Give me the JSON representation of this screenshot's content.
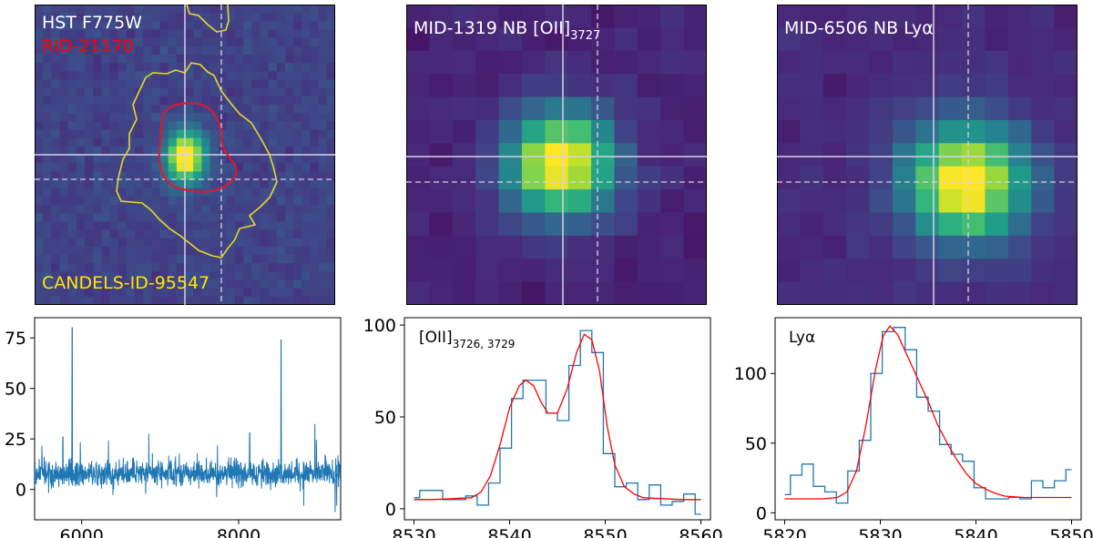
{
  "images": [
    {
      "id": "img1",
      "labels": [
        {
          "text": "HST F775W",
          "color": "#ffffff"
        },
        {
          "text": "RID-21170",
          "color": "#ff0000"
        },
        {
          "text": "CANDELS-ID-95547",
          "color": "#ffe600"
        }
      ]
    },
    {
      "id": "img2",
      "title_main": "MID-1319 NB [OII]",
      "title_sub": "3727"
    },
    {
      "id": "img3",
      "title_main": "MID-6506 NB Lyα"
    }
  ],
  "chart_data": [
    {
      "type": "line",
      "title": "",
      "xlabel": "",
      "ylabel": "",
      "xlim": [
        5400,
        9300
      ],
      "ylim": [
        -15,
        85
      ],
      "xticks": [
        6000,
        8000
      ],
      "yticks": [
        0,
        25,
        50,
        75
      ],
      "xticklabels": [
        "6000",
        "8000"
      ],
      "yticklabels": [
        "0",
        "25",
        "50",
        "75"
      ],
      "series": [
        {
          "name": "spectrum",
          "color": "#1f77b4",
          "baseline": 8,
          "noise": 7,
          "peaks": [
            {
              "x": 5877,
              "y": 80
            },
            {
              "x": 8540,
              "y": 74
            },
            {
              "x": 8140,
              "y": 28
            },
            {
              "x": 5760,
              "y": 26
            }
          ]
        }
      ]
    },
    {
      "type": "line",
      "annotation_main": "[OII]",
      "annotation_sub": "3726, 3729",
      "xlim": [
        8529,
        8561
      ],
      "ylim": [
        -6,
        104
      ],
      "xticks": [
        8530,
        8540,
        8550,
        8560
      ],
      "yticks": [
        0,
        50,
        100
      ],
      "xticklabels": [
        "8530",
        "8540",
        "8550",
        "8560"
      ],
      "yticklabels": [
        "0",
        "50",
        "100"
      ],
      "series": [
        {
          "name": "data",
          "color": "#1f77b4",
          "step": true,
          "x": [
            8530,
            8531.2,
            8532.4,
            8533.6,
            8534.8,
            8536,
            8537.2,
            8538.4,
            8539.6,
            8540.8,
            8542,
            8543.2,
            8544.4,
            8545.6,
            8546.8,
            8548,
            8549.2,
            8550.4,
            8551.6,
            8552.8,
            8554,
            8555.2,
            8556.4,
            8557.6,
            8558.8,
            8560
          ],
          "y": [
            6,
            10,
            10,
            5,
            5,
            7,
            2,
            14,
            33,
            60,
            70,
            70,
            52,
            48,
            78,
            97,
            85,
            30,
            12,
            14,
            5,
            13,
            2,
            4,
            8,
            -3
          ]
        },
        {
          "name": "fit",
          "color": "#ff0000",
          "x": [
            8530,
            8532,
            8534,
            8536,
            8537,
            8538,
            8539,
            8540,
            8541,
            8541.7,
            8542.5,
            8543.3,
            8544,
            8545,
            8546,
            8547,
            8547.8,
            8548.6,
            8549.4,
            8550.2,
            8551,
            8552,
            8553,
            8554,
            8556,
            8558,
            8560
          ],
          "y": [
            5,
            5,
            5.5,
            6,
            9,
            18,
            35,
            55,
            67,
            70,
            67,
            58,
            52,
            52,
            65,
            85,
            95,
            92,
            75,
            45,
            24,
            12,
            8,
            6,
            5.5,
            5,
            5
          ]
        }
      ]
    },
    {
      "type": "line",
      "annotation_main": "Lyα",
      "xlim": [
        5819,
        5851
      ],
      "ylim": [
        -5,
        140
      ],
      "xticks": [
        5820,
        5830,
        5840,
        5850
      ],
      "yticks": [
        0,
        50,
        100
      ],
      "xticklabels": [
        "5820",
        "5830",
        "5840",
        "5850"
      ],
      "yticklabels": [
        "0",
        "50",
        "100"
      ],
      "series": [
        {
          "name": "data",
          "color": "#1f77b4",
          "step": true,
          "x": [
            5820,
            5821.2,
            5822.4,
            5823.6,
            5824.8,
            5826,
            5827.2,
            5828.4,
            5829.6,
            5830.8,
            5832,
            5833.2,
            5834.4,
            5835.6,
            5836.8,
            5838,
            5839.2,
            5840.4,
            5841.6,
            5842.8,
            5844,
            5845.2,
            5846.4,
            5847.6,
            5848.8,
            5850
          ],
          "y": [
            13,
            27,
            35,
            19,
            15,
            7,
            30,
            52,
            100,
            130,
            133,
            117,
            83,
            73,
            49,
            42,
            37,
            18,
            10,
            10,
            11,
            10,
            23,
            18,
            23,
            31
          ]
        },
        {
          "name": "fit",
          "color": "#ff0000",
          "x": [
            5820,
            5822,
            5824,
            5825.5,
            5826.5,
            5827.5,
            5828.5,
            5829.5,
            5830.3,
            5831,
            5831.8,
            5832.8,
            5834,
            5835,
            5836,
            5837,
            5838,
            5839,
            5840,
            5841,
            5842,
            5843,
            5845,
            5847,
            5850
          ],
          "y": [
            10,
            10,
            10,
            11,
            15,
            30,
            63,
            103,
            127,
            134,
            128,
            113,
            95,
            80,
            63,
            50,
            38,
            28,
            21,
            17,
            14,
            12,
            11,
            11,
            11
          ]
        }
      ]
    }
  ]
}
